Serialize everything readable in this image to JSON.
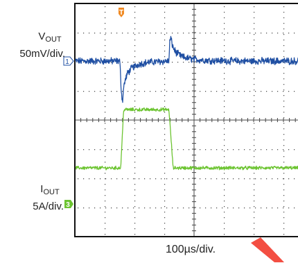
{
  "chart_data": {
    "type": "line",
    "title": "",
    "xlabel": "100µs/div.",
    "x_unit_per_div": "100µs",
    "x_divisions": 8,
    "y_divisions": 8,
    "grid": true,
    "colors": {
      "vout": "#1f4fa3",
      "iout": "#6cc431",
      "trigger": "#f08a24",
      "grid": "#444444"
    },
    "series": [
      {
        "name": "VOUT",
        "ylabel": "50mV/div.",
        "channel_marker": "1",
        "unit": "mV",
        "baseline": 0,
        "noise_pp": 10,
        "x": [
          -6.5,
          -0.05,
          0.0,
          0.04,
          0.08,
          0.12,
          0.2,
          0.35,
          0.6,
          0.9,
          1.6,
          1.63,
          1.66,
          1.7,
          1.75,
          1.85,
          2.05,
          2.4,
          3.0,
          4.0
        ],
        "y": [
          0,
          0,
          -50,
          -70,
          -45,
          -35,
          -22,
          -12,
          -5,
          -2,
          0,
          35,
          40,
          30,
          22,
          14,
          7,
          3,
          1,
          0
        ]
      },
      {
        "name": "IOUT",
        "ylabel": "5A/div.",
        "channel_marker": "3",
        "unit": "A",
        "noise_pp": 0.5,
        "x": [
          -6.5,
          -0.02,
          0.08,
          1.6,
          1.74,
          4.0
        ],
        "y": [
          0,
          0,
          10,
          10,
          0,
          0
        ]
      }
    ],
    "trigger": {
      "marker": "T",
      "x": 0
    }
  }
}
